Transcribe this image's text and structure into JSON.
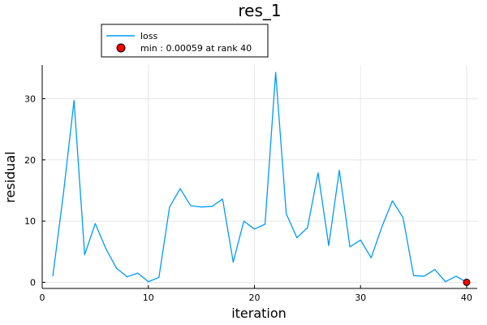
{
  "chart_data": {
    "type": "line",
    "title": "res_1",
    "xlabel": "iteration",
    "ylabel": "residual",
    "xlim": [
      0,
      41
    ],
    "ylim": [
      -1,
      35.5
    ],
    "xticks": [
      0,
      10,
      20,
      30,
      40
    ],
    "yticks": [
      0,
      10,
      20,
      30
    ],
    "grid": true,
    "legend_position": "top-left",
    "series": [
      {
        "name": "loss",
        "color": "#009AFA",
        "x": [
          1,
          2,
          3,
          4,
          5,
          6,
          7,
          8,
          9,
          10,
          11,
          12,
          13,
          14,
          15,
          16,
          17,
          18,
          19,
          20,
          21,
          22,
          23,
          24,
          25,
          26,
          27,
          28,
          29,
          30,
          31,
          32,
          33,
          34,
          35,
          36,
          37,
          38,
          39,
          40
        ],
        "y": [
          1.0,
          14.5,
          29.7,
          4.5,
          9.6,
          5.5,
          2.3,
          0.9,
          1.5,
          0.1,
          0.8,
          12.3,
          15.3,
          12.5,
          12.3,
          12.4,
          13.6,
          3.3,
          10.0,
          8.7,
          9.5,
          34.3,
          11.2,
          7.3,
          8.9,
          17.9,
          6.0,
          18.3,
          5.8,
          6.9,
          4.0,
          9.0,
          13.3,
          10.6,
          1.1,
          1.0,
          2.1,
          0.1,
          1.0,
          0.00059
        ]
      }
    ],
    "marker": {
      "label": "min : 0.00059 at rank 40",
      "x": 40,
      "y": 0.00059,
      "color": "#FF0000"
    }
  }
}
